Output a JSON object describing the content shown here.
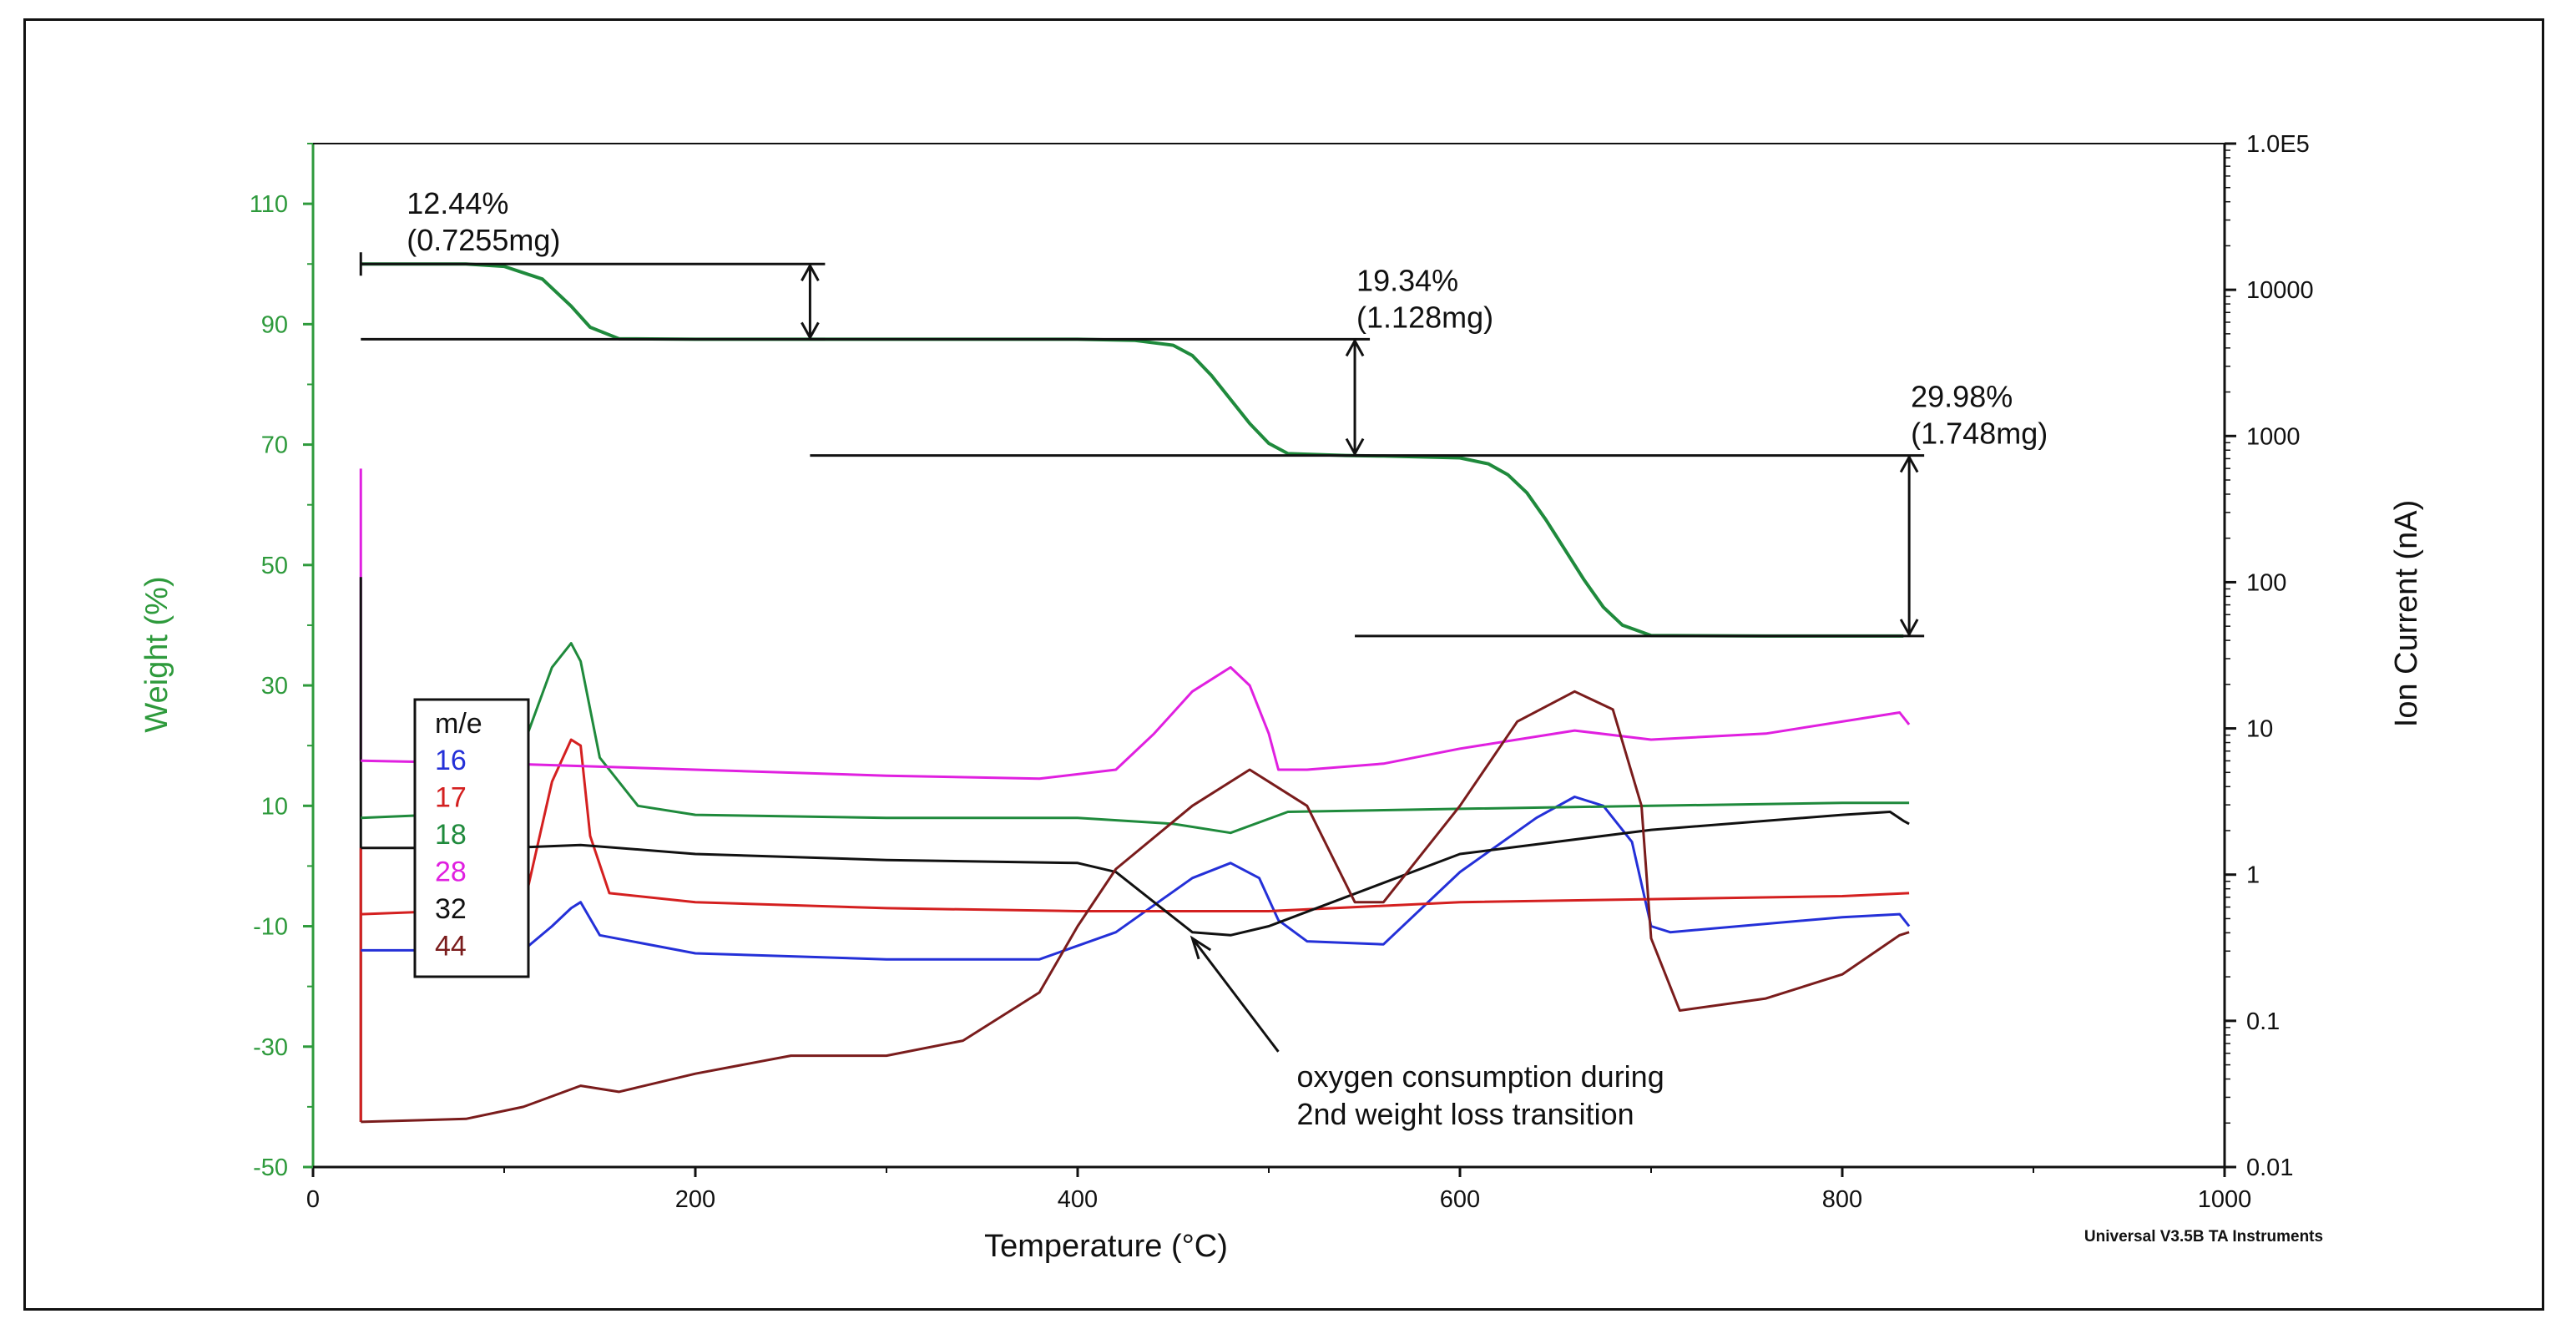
{
  "chart_data": {
    "type": "line",
    "xlabel": "Temperature  (°C)",
    "ylabel_left": "Weight (%)",
    "ylabel_right": "Ion Current (nA)",
    "xlim": [
      0,
      1000
    ],
    "ylim_left": [
      -50,
      120
    ],
    "ylim_right_log": [
      0.01,
      100000
    ],
    "x_ticks": [
      "0",
      "200",
      "400",
      "600",
      "800",
      "1000"
    ],
    "y_left_ticks": [
      "-50",
      "-30",
      "-10",
      "10",
      "30",
      "50",
      "70",
      "90",
      "110"
    ],
    "y_right_ticks": [
      "0.01",
      "0.1",
      "1",
      "10",
      "100",
      "1000",
      "10000",
      "1.0E5"
    ],
    "footer": "Universal V3.5B TA Instruments",
    "colors": {
      "weight": "#1f8a3c",
      "axis_green": "#2e9a3c",
      "m16": "#2430d8",
      "m17": "#d42020",
      "m18": "#1f8a3c",
      "m28": "#e020e0",
      "m32": "#111111",
      "m44": "#7a1c1c"
    },
    "weight_series": {
      "name": "Weight (%)",
      "x": [
        25,
        80,
        100,
        120,
        135,
        145,
        160,
        200,
        260,
        300,
        400,
        430,
        450,
        460,
        470,
        480,
        490,
        500,
        510,
        540,
        560,
        600,
        615,
        625,
        635,
        645,
        655,
        665,
        675,
        685,
        700,
        760,
        832
      ],
      "y": [
        100,
        100,
        99.6,
        97.5,
        93,
        89.5,
        87.6,
        87.5,
        87.5,
        87.5,
        87.5,
        87.3,
        86.5,
        84.8,
        81.5,
        77.5,
        73.5,
        70.2,
        68.5,
        68.2,
        68.1,
        67.8,
        66.8,
        65,
        62,
        57.5,
        52.5,
        47.5,
        43,
        40,
        38.3,
        38.2,
        38.2
      ]
    },
    "annotations": [
      {
        "pct": "12.44%",
        "mass": "(0.7255mg)",
        "x_from": 25,
        "x_to": 260,
        "y_top": 100,
        "y_bottom": 87.5
      },
      {
        "pct": "19.34%",
        "mass": "(1.128mg)",
        "x_from": 260,
        "x_to": 545,
        "y_top": 87.5,
        "y_bottom": 68.2
      },
      {
        "pct": "29.98%",
        "mass": "(1.748mg)",
        "x_from": 545,
        "x_to": 835,
        "y_top": 68.2,
        "y_bottom": 38.2
      }
    ],
    "callout": {
      "line1": "oxygen consumption during",
      "line2": "2nd weight loss transition",
      "point_x": 460,
      "point_y": -12,
      "text_x": 505,
      "text_y": -35
    },
    "legend": {
      "title": "m/e",
      "items": [
        "16",
        "17",
        "18",
        "28",
        "32",
        "44"
      ]
    },
    "ion_series": [
      {
        "name": "16",
        "x": [
          25,
          110,
          125,
          135,
          140,
          150,
          200,
          300,
          380,
          420,
          460,
          480,
          495,
          505,
          520,
          560,
          600,
          640,
          660,
          675,
          690,
          700,
          710,
          800,
          830,
          835
        ],
        "y": [
          -14,
          -14,
          -10,
          -7,
          -6,
          -11.5,
          -14.5,
          -15.5,
          -15.5,
          -11,
          -2,
          0.5,
          -2,
          -9,
          -12.5,
          -13,
          -1,
          8,
          11.5,
          10,
          4,
          -10,
          -11,
          -8.5,
          -8,
          -10
        ]
      },
      {
        "name": "17",
        "x": [
          25,
          110,
          125,
          135,
          140,
          145,
          155,
          200,
          300,
          400,
          500,
          600,
          700,
          800,
          835
        ],
        "y": [
          -8,
          -7,
          14,
          21,
          20,
          5,
          -4.5,
          -6,
          -7,
          -7.5,
          -7.5,
          -6,
          -5.5,
          -5,
          -4.5
        ]
      },
      {
        "name": "18",
        "x": [
          25,
          100,
          110,
          125,
          135,
          140,
          150,
          170,
          200,
          300,
          400,
          450,
          480,
          510,
          600,
          700,
          800,
          835
        ],
        "y": [
          8,
          9,
          20,
          33,
          37,
          34,
          18,
          10,
          8.5,
          8,
          8,
          7,
          5.5,
          9,
          9.5,
          10,
          10.5,
          10.5
        ]
      },
      {
        "name": "28",
        "x": [
          25,
          100,
          200,
          300,
          380,
          420,
          440,
          460,
          480,
          490,
          500,
          505,
          520,
          560,
          600,
          660,
          700,
          760,
          820,
          830,
          835
        ],
        "y": [
          17.5,
          17,
          16,
          15,
          14.5,
          16,
          22,
          29,
          33,
          30,
          22,
          16,
          16,
          17,
          19.5,
          22.5,
          21,
          22,
          25,
          25.5,
          23.5
        ]
      },
      {
        "name": "32",
        "x": [
          25,
          100,
          140,
          200,
          300,
          400,
          420,
          440,
          460,
          480,
          500,
          600,
          700,
          800,
          825,
          832,
          835
        ],
        "y": [
          3,
          3,
          3.5,
          2,
          1,
          0.5,
          -1,
          -6,
          -11,
          -11.5,
          -10,
          2,
          6,
          8.5,
          9,
          7.5,
          7
        ]
      },
      {
        "name": "44",
        "x": [
          25,
          80,
          110,
          140,
          160,
          200,
          250,
          300,
          340,
          380,
          400,
          420,
          460,
          490,
          520,
          545,
          560,
          600,
          630,
          660,
          680,
          695,
          700,
          715,
          760,
          800,
          830,
          835
        ],
        "y": [
          -42.5,
          -42,
          -40,
          -36.5,
          -37.5,
          -34.5,
          -31.5,
          -31.5,
          -29,
          -21,
          -10,
          -0.5,
          10,
          16,
          10,
          -6,
          -6,
          10,
          24,
          29,
          26,
          10,
          -12,
          -24,
          -22,
          -18,
          -11.5,
          -11
        ]
      }
    ]
  }
}
